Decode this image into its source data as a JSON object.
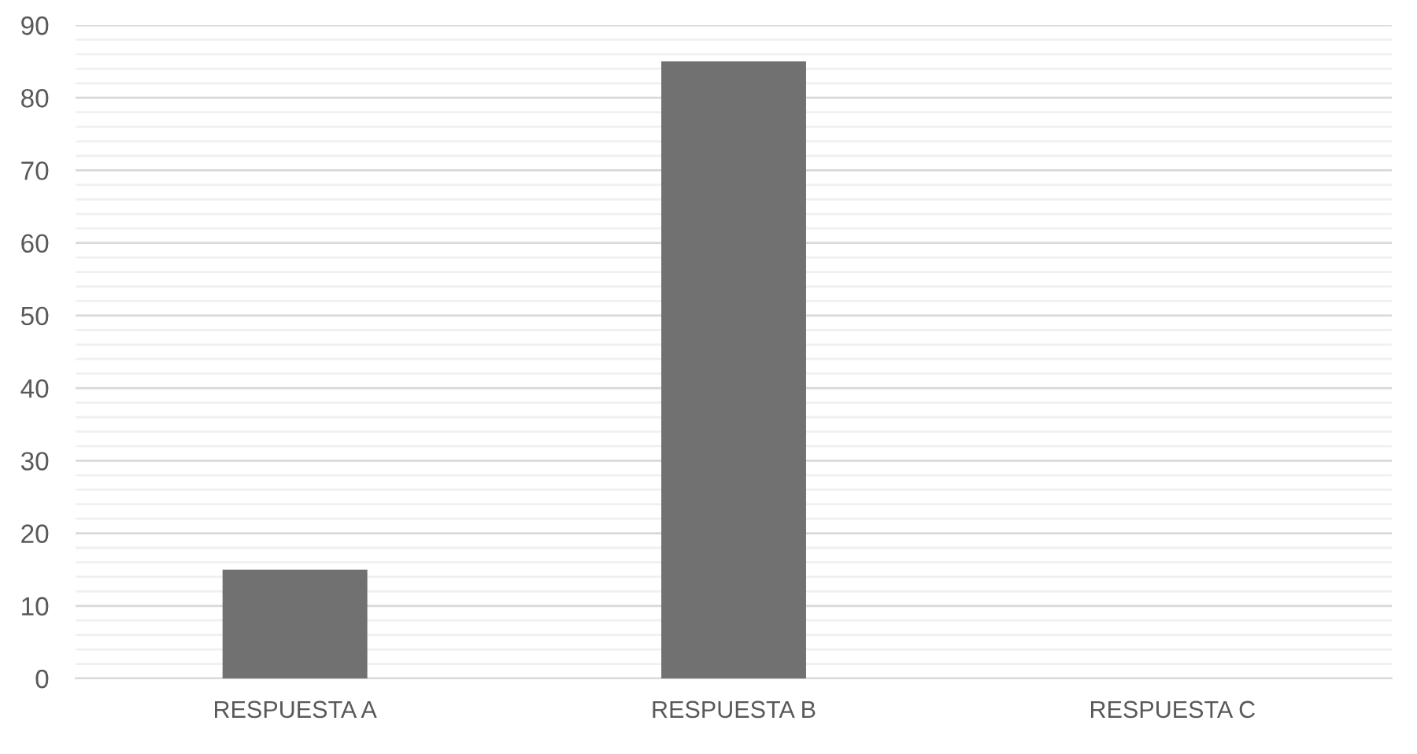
{
  "chart_data": {
    "type": "bar",
    "categories": [
      "RESPUESTA A",
      "RESPUESTA B",
      "RESPUESTA C"
    ],
    "values": [
      15,
      85,
      0
    ],
    "color": "#717171",
    "ylim": [
      0,
      90
    ],
    "yticks": [
      0,
      10,
      20,
      30,
      40,
      50,
      60,
      70,
      80,
      90
    ],
    "grid": "y",
    "legend": false
  }
}
